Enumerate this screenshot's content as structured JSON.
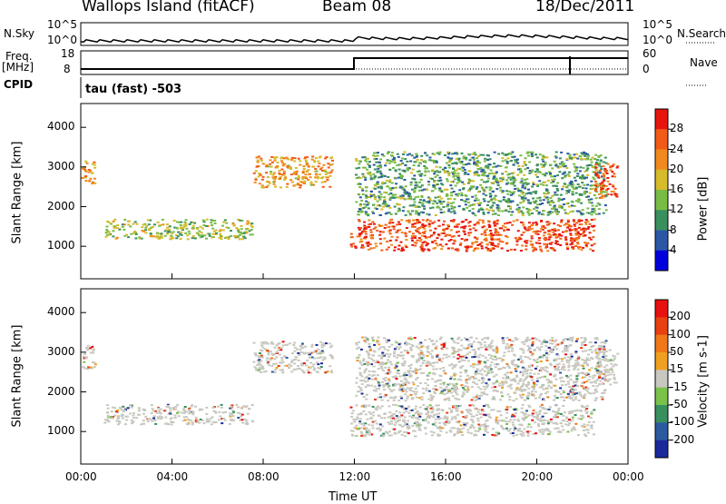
{
  "header": {
    "station": "Wallops Island (fitACF)",
    "beam": "Beam 08",
    "date": "18/Dec/2011"
  },
  "panels": {
    "nsky_label": "N.Sky",
    "nsearch_label": "N.Search",
    "nsky_ticks": [
      "10^5",
      "10^0"
    ],
    "nsearch_ticks": [
      "10^5",
      "10^0"
    ],
    "freq_label": "Freq.",
    "freq_unit": "[MHz]",
    "freq_ticks": [
      "18",
      "8"
    ],
    "nave_label": "Nave",
    "nave_ticks": [
      "60",
      "0"
    ],
    "cpid_label": "CPID",
    "cpid_text": "tau (fast) -503"
  },
  "chart_data": [
    {
      "type": "heatmap",
      "title": "",
      "ylabel": "Slant Range [km]",
      "xlabel": "",
      "x_ticks": [
        "00:00",
        "04:00",
        "08:00",
        "12:00",
        "16:00",
        "20:00",
        "00:00"
      ],
      "y_ticks": [
        "1000",
        "2000",
        "3000",
        "4000"
      ],
      "xlim_hours": [
        0,
        24
      ],
      "ylim_km": [
        180,
        4600
      ],
      "colorbar": {
        "label": "Power [dB]",
        "ticks": [
          "4",
          "8",
          "12",
          "16",
          "20",
          "24",
          "28"
        ],
        "colors": [
          "#0000dd",
          "#2a58a6",
          "#3a8f5f",
          "#78bc46",
          "#d6bb2a",
          "#f08a1e",
          "#f25a18",
          "#e8150f"
        ]
      },
      "regions": [
        {
          "t": [
            0.0,
            0.6
          ],
          "r": [
            2600,
            3200
          ],
          "level": 0.7
        },
        {
          "t": [
            1.0,
            7.5
          ],
          "r": [
            1200,
            1700
          ],
          "level": 0.45
        },
        {
          "t": [
            7.5,
            11.0
          ],
          "r": [
            2500,
            3300
          ],
          "level": 0.7
        },
        {
          "t": [
            11.8,
            22.5
          ],
          "r": [
            900,
            1700
          ],
          "level": 0.9
        },
        {
          "t": [
            12.0,
            23.0
          ],
          "r": [
            1800,
            3400
          ],
          "level": 0.35
        },
        {
          "t": [
            22.5,
            23.5
          ],
          "r": [
            2200,
            3100
          ],
          "level": 0.85
        }
      ]
    },
    {
      "type": "heatmap",
      "title": "",
      "ylabel": "Slant Range [km]",
      "xlabel": "Time UT",
      "x_ticks": [
        "00:00",
        "04:00",
        "08:00",
        "12:00",
        "16:00",
        "20:00",
        "00:00"
      ],
      "y_ticks": [
        "1000",
        "2000",
        "3000",
        "4000"
      ],
      "xlim_hours": [
        0,
        24
      ],
      "ylim_km": [
        180,
        4600
      ],
      "colorbar": {
        "label": "Velocity [m s-1]",
        "ticks": [
          "200",
          "100",
          "50",
          "15",
          "-15",
          "-50",
          "-100",
          "-200"
        ],
        "colors": [
          "#1a2a9a",
          "#2c5aa0",
          "#3a8f5f",
          "#7ac24a",
          "#c8c8c0",
          "#f0a020",
          "#f07818",
          "#e84010",
          "#e81010"
        ]
      },
      "regions": [
        {
          "t": [
            0.0,
            0.6
          ],
          "r": [
            2600,
            3200
          ],
          "level": 0.5
        },
        {
          "t": [
            1.0,
            7.5
          ],
          "r": [
            1200,
            1700
          ],
          "level": 0.4
        },
        {
          "t": [
            7.5,
            11.0
          ],
          "r": [
            2500,
            3300
          ],
          "level": 0.5
        },
        {
          "t": [
            11.8,
            22.5
          ],
          "r": [
            900,
            1700
          ],
          "level": 0.5
        },
        {
          "t": [
            12.0,
            23.0
          ],
          "r": [
            1800,
            3400
          ],
          "level": 0.5
        },
        {
          "t": [
            22.5,
            23.5
          ],
          "r": [
            2200,
            3100
          ],
          "level": 0.5
        }
      ]
    }
  ]
}
